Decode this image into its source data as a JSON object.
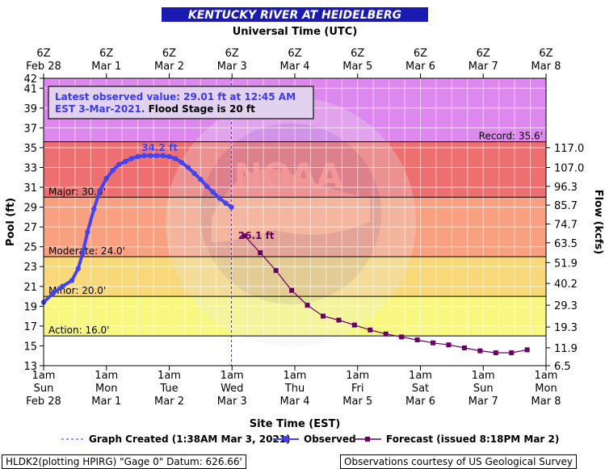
{
  "header": {
    "title": "KENTUCKY RIVER AT HEIDELBERG",
    "top_axis_title": "Universal Time (UTC)",
    "bottom_axis_title": "Site Time (EST)"
  },
  "top_ticks": [
    {
      "hour": "6Z",
      "date": "Feb 28"
    },
    {
      "hour": "6Z",
      "date": "Mar 1"
    },
    {
      "hour": "6Z",
      "date": "Mar 2"
    },
    {
      "hour": "6Z",
      "date": "Mar 3"
    },
    {
      "hour": "6Z",
      "date": "Mar 4"
    },
    {
      "hour": "6Z",
      "date": "Mar 5"
    },
    {
      "hour": "6Z",
      "date": "Mar 6"
    },
    {
      "hour": "6Z",
      "date": "Mar 7"
    },
    {
      "hour": "6Z",
      "date": "Mar 8"
    }
  ],
  "bottom_ticks": [
    {
      "time": "1am",
      "day": "Sun",
      "date": "Feb 28"
    },
    {
      "time": "1am",
      "day": "Mon",
      "date": "Mar 1"
    },
    {
      "time": "1am",
      "day": "Tue",
      "date": "Mar 2"
    },
    {
      "time": "1am",
      "day": "Wed",
      "date": "Mar 3"
    },
    {
      "time": "1am",
      "day": "Thu",
      "date": "Mar 4"
    },
    {
      "time": "1am",
      "day": "Fri",
      "date": "Mar 5"
    },
    {
      "time": "1am",
      "day": "Sat",
      "date": "Mar 6"
    },
    {
      "time": "1am",
      "day": "Sun",
      "date": "Mar 7"
    },
    {
      "time": "1am",
      "day": "Mon",
      "date": "Mar 8"
    }
  ],
  "info_box": {
    "line1": "Latest observed value: 29.01 ft at 12:45 AM",
    "line2_a": "EST 3-Mar-2021. ",
    "line2_b": "Flood Stage is 20 ft"
  },
  "legend": {
    "created": "Graph Created (1:38AM Mar 3, 2021)",
    "observed": "Observed",
    "forecast": "Forecast (issued 8:18PM Mar 2)"
  },
  "footer": {
    "left": "HLDK2(plotting HPIRG) \"Gage 0\" Datum: 626.66'",
    "right": "Observations courtesy of US Geological Survey"
  },
  "watermark": {
    "logo_text": "NOAA",
    "ring_text": "NATIONAL OCEANIC AND ATMOSPHERIC ADMINISTRATION",
    "commerce_text": "U.S. DEPARTMENT OF COMMERCE"
  },
  "colors": {
    "title_bg": "#1a1ab0",
    "observed": "#4444ee",
    "forecast": "#660066",
    "record_band": "#dd88ee",
    "major_band": "#ee6f6f",
    "moderate_band": "#f8a080",
    "minor_band": "#f8d878",
    "action_band": "#f8f880",
    "normal_band": "#ffffff"
  },
  "chart_data": {
    "type": "line",
    "y_left_label": "Pool (ft)",
    "y_right_label": "Flow (kcfs)",
    "x_unit": "days since 1am EST Feb 28",
    "xlim": [
      0,
      8
    ],
    "ylim": [
      13,
      42
    ],
    "y_ticks": [
      13,
      15,
      17,
      19,
      21,
      23,
      25,
      27,
      29,
      31,
      33,
      35,
      37,
      39,
      41,
      42
    ],
    "flow_ticks": [
      {
        "stage": 14.8,
        "label": "11.9"
      },
      {
        "stage": 13.0,
        "label": "6.5"
      },
      {
        "stage": 16.9,
        "label": "19.3"
      },
      {
        "stage": 19.1,
        "label": "29.3"
      },
      {
        "stage": 21.3,
        "label": "40.2"
      },
      {
        "stage": 23.4,
        "label": "51.9"
      },
      {
        "stage": 25.4,
        "label": "63.5"
      },
      {
        "stage": 27.3,
        "label": "74.7"
      },
      {
        "stage": 29.2,
        "label": "85.7"
      },
      {
        "stage": 31.1,
        "label": "96.3"
      },
      {
        "stage": 33.0,
        "label": "107.0"
      },
      {
        "stage": 35.0,
        "label": "117.0"
      }
    ],
    "flood_categories": [
      {
        "name": "Record",
        "label": "Record: 35.6'",
        "stage": 35.6
      },
      {
        "name": "Major",
        "label": "Major: 30.0'",
        "stage": 30.0
      },
      {
        "name": "Moderate",
        "label": "Moderate: 24.0'",
        "stage": 24.0
      },
      {
        "name": "Minor",
        "label": "Minor: 20.0'",
        "stage": 20.0
      },
      {
        "name": "Action",
        "label": "Action: 16.0'",
        "stage": 16.0
      }
    ],
    "graph_created_x": 2.99,
    "series": [
      {
        "name": "Observed",
        "peak_label": "34.2 ft",
        "peak_point": [
          1.95,
          34.2
        ],
        "x": [
          0.0,
          0.15,
          0.3,
          0.45,
          0.55,
          0.62,
          0.7,
          0.8,
          0.9,
          1.0,
          1.1,
          1.2,
          1.3,
          1.4,
          1.5,
          1.6,
          1.7,
          1.8,
          1.9,
          2.0,
          2.1,
          2.2,
          2.3,
          2.4,
          2.5,
          2.6,
          2.7,
          2.8,
          2.9,
          2.99
        ],
        "y": [
          19.4,
          20.3,
          21.0,
          21.6,
          22.8,
          24.3,
          26.5,
          28.8,
          30.7,
          31.9,
          32.7,
          33.3,
          33.6,
          33.9,
          34.1,
          34.2,
          34.2,
          34.2,
          34.2,
          34.1,
          33.9,
          33.5,
          33.0,
          32.4,
          31.8,
          31.1,
          30.5,
          29.9,
          29.4,
          29.01
        ]
      },
      {
        "name": "Forecast",
        "point_label": "26.1 ft",
        "label_point": [
          3.2,
          26.1
        ],
        "x": [
          3.2,
          3.45,
          3.7,
          3.95,
          4.2,
          4.45,
          4.7,
          4.95,
          5.2,
          5.45,
          5.7,
          5.95,
          6.2,
          6.45,
          6.7,
          6.95,
          7.2,
          7.45,
          7.7
        ],
        "y": [
          26.1,
          24.4,
          22.6,
          20.6,
          19.1,
          18.0,
          17.6,
          17.1,
          16.6,
          16.2,
          15.9,
          15.6,
          15.3,
          15.1,
          14.8,
          14.5,
          14.3,
          14.3,
          14.6
        ]
      }
    ]
  }
}
